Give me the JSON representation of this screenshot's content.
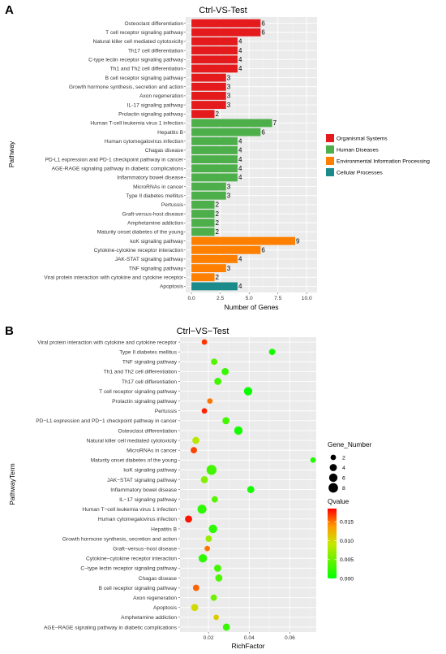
{
  "panelA": {
    "letter": "A",
    "title": "Ctrl-VS-Test",
    "xlabel": "Number of Genes",
    "ylabel": "Pathway"
  },
  "panelB": {
    "letter": "B",
    "title": "Ctrl−VS−Test",
    "xlabel": "RichFactor",
    "ylabel": "PathwayTerm"
  },
  "chart_data": [
    {
      "type": "bar",
      "orientation": "horizontal",
      "title": "Ctrl-VS-Test",
      "xlabel": "Number of Genes",
      "ylabel": "Pathway",
      "xlim": [
        -0.5,
        10.9
      ],
      "x_ticks": [
        0.0,
        2.5,
        5.0,
        7.5,
        10.0
      ],
      "x_tick_labels": [
        "0.0",
        "2.5",
        "5.0",
        "7.5",
        "10.0"
      ],
      "grid": true,
      "legend_position": "right",
      "groups": [
        {
          "name": "Organismal Systems",
          "color": "#e41a1c"
        },
        {
          "name": "Human Diseases",
          "color": "#4daf4a"
        },
        {
          "name": "Environmental Information Processing",
          "color": "#ff7f00"
        },
        {
          "name": "Cellular Processes",
          "color": "#1a8a8a"
        }
      ],
      "bars": [
        {
          "label": "Osteoclast differentiation",
          "value": 6,
          "group": 0
        },
        {
          "label": "T cell receptor signaling pathway",
          "value": 6,
          "group": 0
        },
        {
          "label": "Natural killer cell mediated cytotoxicity",
          "value": 4,
          "group": 0
        },
        {
          "label": "Th17 cell differentiation",
          "value": 4,
          "group": 0
        },
        {
          "label": "C-type lectin receptor signaling pathway",
          "value": 4,
          "group": 0
        },
        {
          "label": "Th1 and Th2 cell differentiation",
          "value": 4,
          "group": 0
        },
        {
          "label": "B cell receptor signaling pathway",
          "value": 3,
          "group": 0
        },
        {
          "label": "Growth hormone synthesis, secretion and action",
          "value": 3,
          "group": 0
        },
        {
          "label": "Axon regeneration",
          "value": 3,
          "group": 0
        },
        {
          "label": "IL-17 signaling pathway",
          "value": 3,
          "group": 0
        },
        {
          "label": "Prolactin signaling pathway",
          "value": 2,
          "group": 0
        },
        {
          "label": "Human T-cell leukemia virus 1 infection",
          "value": 7,
          "group": 1
        },
        {
          "label": "Hepatitis B",
          "value": 6,
          "group": 1
        },
        {
          "label": "Human cytomegalovirus infection",
          "value": 4,
          "group": 1
        },
        {
          "label": "Chagas disease",
          "value": 4,
          "group": 1
        },
        {
          "label": "PD-L1 expression and PD-1 checkpoint pathway in cancer",
          "value": 4,
          "group": 1
        },
        {
          "label": "AGE-RAGE signaling pathway in diabetic complications",
          "value": 4,
          "group": 1
        },
        {
          "label": "Inflammatory bowel disease",
          "value": 4,
          "group": 1
        },
        {
          "label": "MicroRNAs in cancer",
          "value": 3,
          "group": 1
        },
        {
          "label": "Type II diabetes mellitus",
          "value": 3,
          "group": 1
        },
        {
          "label": "Pertussis",
          "value": 2,
          "group": 1
        },
        {
          "label": "Graft-versus-host disease",
          "value": 2,
          "group": 1
        },
        {
          "label": "Amphetamine addiction",
          "value": 2,
          "group": 1
        },
        {
          "label": "Maturity onset diabetes of the young",
          "value": 2,
          "group": 1
        },
        {
          "label": "koK signaling pathway",
          "value": 9,
          "group": 2
        },
        {
          "label": "Cytokine-cytokine receptor interaction",
          "value": 6,
          "group": 2
        },
        {
          "label": "JAK-STAT signaling pathway",
          "value": 4,
          "group": 2
        },
        {
          "label": "TNF signaling pathway",
          "value": 3,
          "group": 2
        },
        {
          "label": "Viral protein interaction with cytokine and cytokine receptor",
          "value": 2,
          "group": 2
        },
        {
          "label": "Apoptosis",
          "value": 4,
          "group": 3
        }
      ]
    },
    {
      "type": "scatter",
      "title": "Ctrl−VS−Test",
      "xlabel": "RichFactor",
      "ylabel": "PathwayTerm",
      "xlim": [
        0.006,
        0.073
      ],
      "x_ticks": [
        0.02,
        0.04,
        0.06
      ],
      "x_tick_labels": [
        "0.02",
        "0.04",
        "0.06"
      ],
      "grid": true,
      "legend_position": "right",
      "size_legend": {
        "title": "Gene_Number",
        "values": [
          2,
          4,
          6,
          8
        ],
        "labels": [
          "2",
          "4",
          "6",
          "8"
        ]
      },
      "color_legend": {
        "title": "Qvalue",
        "range": [
          0.0,
          0.0185
        ],
        "ticks": [
          0.015,
          0.01,
          0.005,
          0.0
        ],
        "tick_labels": [
          "0.015",
          "0.010",
          "0.005",
          "0.000"
        ],
        "low_color": "#00ff00",
        "high_color": "#ff0000"
      },
      "points": [
        {
          "term": "Viral protein interaction with cytokine and cytokine receptor",
          "rich": 0.018,
          "genes": 2,
          "q": 0.017
        },
        {
          "term": "Type II diabetes mellitus",
          "rich": 0.0513,
          "genes": 3,
          "q": 0.001
        },
        {
          "term": "TNF signaling pathway",
          "rich": 0.0228,
          "genes": 3,
          "q": 0.004
        },
        {
          "term": "Th1 and Th2 cell differentiation",
          "rich": 0.0282,
          "genes": 4,
          "q": 0.0025
        },
        {
          "term": "Th17 cell differentiation",
          "rich": 0.0246,
          "genes": 4,
          "q": 0.003
        },
        {
          "term": "T cell receptor signaling pathway",
          "rich": 0.0395,
          "genes": 6,
          "q": 0.0005
        },
        {
          "term": "Prolactin signaling pathway",
          "rich": 0.0207,
          "genes": 2,
          "q": 0.015
        },
        {
          "term": "Pertussis",
          "rich": 0.018,
          "genes": 2,
          "q": 0.0175
        },
        {
          "term": "PD−L1 expression and PD−1 checkpoint pathway in cancer",
          "rich": 0.0286,
          "genes": 4,
          "q": 0.003
        },
        {
          "term": "Osteoclast differentiation",
          "rich": 0.0347,
          "genes": 6,
          "q": 0.001
        },
        {
          "term": "Natural killer cell mediated cytotoxicity",
          "rich": 0.0138,
          "genes": 4,
          "q": 0.0085
        },
        {
          "term": "MicroRNAs in cancer",
          "rich": 0.0128,
          "genes": 3,
          "q": 0.0165
        },
        {
          "term": "Maturity onset diabetes of the young",
          "rich": 0.0714,
          "genes": 2,
          "q": 0.0015
        },
        {
          "term": "koK signaling pathway",
          "rich": 0.0215,
          "genes": 9,
          "q": 0.003
        },
        {
          "term": "JAK−STAT signaling pathway",
          "rich": 0.018,
          "genes": 4,
          "q": 0.006
        },
        {
          "term": "Inflammatory bowel disease",
          "rich": 0.0408,
          "genes": 4,
          "q": 0.001
        },
        {
          "term": "IL−17 signaling pathway",
          "rich": 0.0231,
          "genes": 3,
          "q": 0.004
        },
        {
          "term": "Human T−cell leukemia virus 1 infection",
          "rich": 0.0168,
          "genes": 7,
          "q": 0.002
        },
        {
          "term": "Human cytomegalovirus infection",
          "rich": 0.0102,
          "genes": 4,
          "q": 0.018
        },
        {
          "term": "Hepatitis B",
          "rich": 0.0222,
          "genes": 6,
          "q": 0.002
        },
        {
          "term": "Growth hormone synthesis, secretion and action",
          "rich": 0.0201,
          "genes": 3,
          "q": 0.007
        },
        {
          "term": "Graft−versus−host disease",
          "rich": 0.0194,
          "genes": 2,
          "q": 0.015
        },
        {
          "term": "Cytokine−cytokine receptor interaction",
          "rich": 0.0172,
          "genes": 6,
          "q": 0.002
        },
        {
          "term": "C−type lectin receptor signaling pathway",
          "rich": 0.0245,
          "genes": 4,
          "q": 0.003
        },
        {
          "term": "Chagas disease",
          "rich": 0.0251,
          "genes": 4,
          "q": 0.0035
        },
        {
          "term": "B cell receptor signaling pathway",
          "rich": 0.0139,
          "genes": 3,
          "q": 0.0155
        },
        {
          "term": "Axon regeneration",
          "rich": 0.0226,
          "genes": 3,
          "q": 0.005
        },
        {
          "term": "Apoptosis",
          "rich": 0.0132,
          "genes": 4,
          "q": 0.01
        },
        {
          "term": "Amphetamine addiction",
          "rich": 0.0238,
          "genes": 2,
          "q": 0.011
        },
        {
          "term": "AGE−RAGE signaling pathway in diabetic complications",
          "rich": 0.0288,
          "genes": 4,
          "q": 0.0025
        }
      ]
    }
  ]
}
